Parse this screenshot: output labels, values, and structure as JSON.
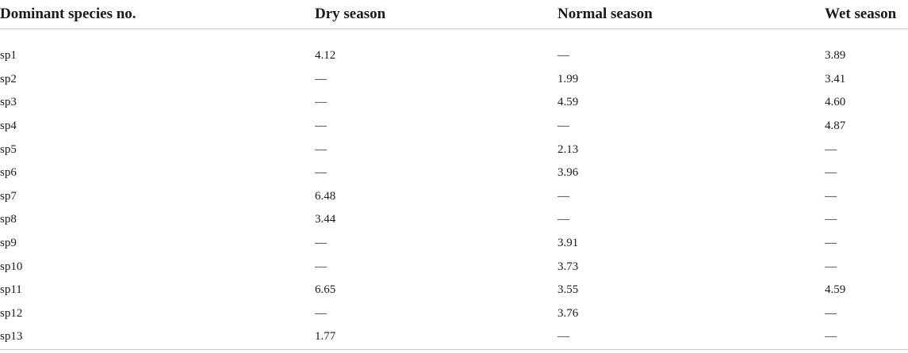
{
  "table": {
    "headers": [
      "Dominant species no.",
      "Dry season",
      "Normal season",
      "Wet season"
    ],
    "rows": [
      [
        "sp1",
        "4.12",
        "—",
        "3.89"
      ],
      [
        "sp2",
        "—",
        "1.99",
        "3.41"
      ],
      [
        "sp3",
        "—",
        "4.59",
        "4.60"
      ],
      [
        "sp4",
        "—",
        "—",
        "4.87"
      ],
      [
        "sp5",
        "—",
        "2.13",
        "—"
      ],
      [
        "sp6",
        "—",
        "3.96",
        "—"
      ],
      [
        "sp7",
        "6.48",
        "—",
        "—"
      ],
      [
        "sp8",
        "3.44",
        "—",
        "—"
      ],
      [
        "sp9",
        "—",
        "3.91",
        "—"
      ],
      [
        "sp10",
        "—",
        "3.73",
        "—"
      ],
      [
        "sp11",
        "6.65",
        "3.55",
        "4.59"
      ],
      [
        "sp12",
        "—",
        "3.76",
        "—"
      ],
      [
        "sp13",
        "1.77",
        "—",
        "—"
      ]
    ]
  }
}
